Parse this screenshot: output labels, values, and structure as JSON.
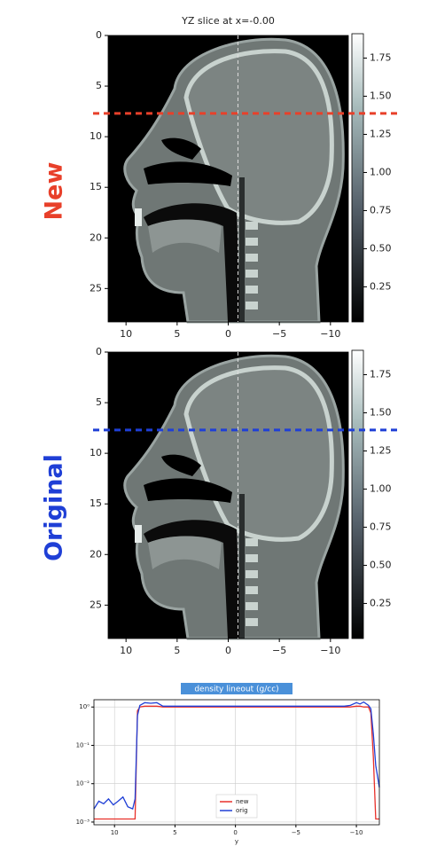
{
  "chart_data": [
    {
      "type": "image",
      "title": "YZ slice at x=-0.00",
      "side_label": "New",
      "side_label_color": "#e8402a",
      "xlim": [
        11.75,
        -11.75
      ],
      "xticks": [
        10,
        5,
        0,
        {
          "value": -5,
          "label": "−5"
        },
        {
          "value": -10,
          "label": "−10"
        }
      ],
      "ylim": [
        28.3,
        0
      ],
      "yticks": [
        0,
        5,
        10,
        15,
        20,
        25
      ],
      "clim": [
        0.02,
        1.91
      ],
      "cticks": [
        {
          "value": 0.25,
          "label": "0.25"
        },
        {
          "value": 0.5,
          "label": "0.50"
        },
        0.75,
        {
          "value": 1,
          "label": "1.00"
        },
        1.25,
        {
          "value": 1.5,
          "label": "1.50"
        },
        1.75
      ],
      "lineout": 7.7,
      "lineout_color": "#e8402a",
      "vline": -0.95
    },
    {
      "type": "image",
      "side_label": "Original",
      "side_label_color": "#1f3fd6",
      "xlim": [
        11.75,
        -11.75
      ],
      "xticks": [
        10,
        5,
        0,
        {
          "value": -5,
          "label": "−5"
        },
        {
          "value": -10,
          "label": "−10"
        }
      ],
      "ylim": [
        28.3,
        0
      ],
      "yticks": [
        0,
        5,
        10,
        15,
        20,
        25
      ],
      "clim": [
        0.02,
        1.91
      ],
      "cticks": [
        {
          "value": 0.25,
          "label": "0.25"
        },
        {
          "value": 0.5,
          "label": "0.50"
        },
        0.75,
        {
          "value": 1,
          "label": "1.00"
        },
        1.25,
        {
          "value": 1.5,
          "label": "1.50"
        },
        1.75
      ],
      "lineout": 7.7,
      "lineout_color": "#1f3fd6",
      "vline": -0.95
    },
    {
      "type": "line",
      "title": "density lineout (g/cc)",
      "xlabel": "y",
      "log_y": true,
      "grid": true,
      "legend": "lower center",
      "xlim": [
        11.7,
        -11.9
      ],
      "xticks": [
        10,
        5,
        0,
        {
          "value": -5,
          "label": "−5"
        },
        {
          "value": -10,
          "label": "−10"
        }
      ],
      "ylim": [
        0.00085,
        1.55
      ],
      "yticks": [
        {
          "value": 0.001,
          "label": "10⁻³"
        },
        {
          "value": 0.01,
          "label": "10⁻²"
        },
        {
          "value": 0.1,
          "label": "10⁻¹"
        },
        {
          "value": 1,
          "label": "10⁰"
        }
      ],
      "x": [
        11.7,
        11.3,
        10.9,
        10.5,
        10.1,
        9.7,
        9.3,
        8.9,
        8.5,
        8.3,
        8.1,
        7.9,
        7.5,
        7.0,
        6.5,
        6.0,
        5,
        4,
        3,
        2,
        1,
        0,
        -1,
        -2,
        -3,
        -4,
        -5,
        -6,
        -7,
        -8,
        -9,
        -9.5,
        -10,
        -10.3,
        -10.6,
        -11.0,
        -11.2,
        -11.4,
        -11.6,
        -11.9
      ],
      "series": [
        {
          "name": "new",
          "color": "#e8302a",
          "values": [
            0.0012,
            0.0012,
            0.0012,
            0.0012,
            0.0012,
            0.0012,
            0.0012,
            0.0012,
            0.0012,
            0.0012,
            0.8,
            1.0,
            1.05,
            1.05,
            1.05,
            1.0,
            1.0,
            1.0,
            1.0,
            1.0,
            1.0,
            1.0,
            1.0,
            1.0,
            1.0,
            1.0,
            1.0,
            1.0,
            1.0,
            1.0,
            1.0,
            1.0,
            1.05,
            1.05,
            1.0,
            1.0,
            0.7,
            0.05,
            0.0012,
            0.0012
          ]
        },
        {
          "name": "orig",
          "color": "#1f3fd6",
          "values": [
            0.0022,
            0.0035,
            0.003,
            0.004,
            0.0028,
            0.0035,
            0.0045,
            0.0025,
            0.0022,
            0.004,
            0.6,
            1.1,
            1.3,
            1.25,
            1.3,
            1.05,
            1.05,
            1.05,
            1.05,
            1.05,
            1.05,
            1.05,
            1.05,
            1.05,
            1.05,
            1.05,
            1.05,
            1.05,
            1.05,
            1.05,
            1.05,
            1.1,
            1.3,
            1.2,
            1.35,
            1.1,
            0.9,
            0.2,
            0.03,
            0.008
          ]
        }
      ]
    }
  ]
}
